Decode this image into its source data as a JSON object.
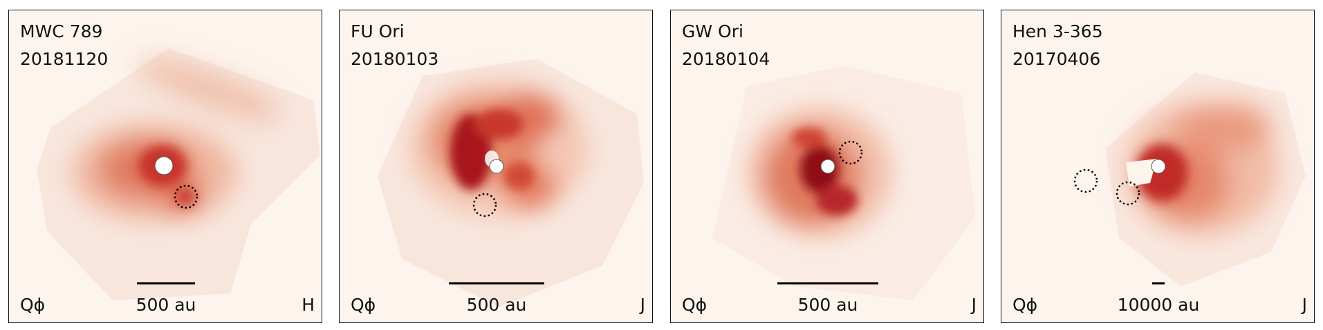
{
  "panels": [
    {
      "name": "MWC 789",
      "date": "20181120",
      "stokes": "Qϕ",
      "band": "H",
      "scale_label": "500 au",
      "scale_fraction": 0.186
    },
    {
      "name": "FU Ori",
      "date": "20180103",
      "stokes": "Qϕ",
      "band": "J",
      "scale_label": "500 au",
      "scale_fraction": 0.304
    },
    {
      "name": "GW Ori",
      "date": "20180104",
      "stokes": "Qϕ",
      "band": "J",
      "scale_label": "500 au",
      "scale_fraction": 0.322
    },
    {
      "name": "Hen 3-365",
      "date": "20170406",
      "stokes": "Qϕ",
      "band": "J",
      "scale_label": "10000 au",
      "scale_fraction": 0.04
    }
  ]
}
